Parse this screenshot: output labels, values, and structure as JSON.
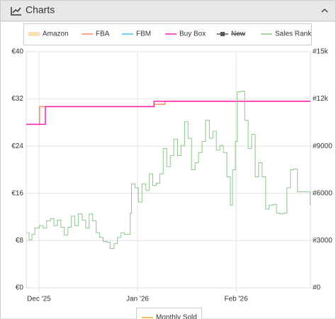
{
  "panel": {
    "title": "Charts"
  },
  "chart_data": {
    "type": "line",
    "xlim": [
      -4,
      85.4
    ],
    "xticks": [
      {
        "value": 0,
        "label": "Dec '25"
      },
      {
        "value": 31,
        "label": "Jan '26"
      },
      {
        "value": 62,
        "label": "Feb '26"
      }
    ],
    "ylim": [
      0,
      40
    ],
    "yticks": [
      {
        "value": 0,
        "label": "€0"
      },
      {
        "value": 8,
        "label": "€8"
      },
      {
        "value": 16,
        "label": "€16"
      },
      {
        "value": 24,
        "label": "€24"
      },
      {
        "value": 32,
        "label": "€32"
      },
      {
        "value": 40,
        "label": "€40"
      }
    ],
    "y2lim": [
      0,
      15000
    ],
    "y2ticks": [
      {
        "value": 0,
        "label": "#0"
      },
      {
        "value": 3000,
        "label": "#3000"
      },
      {
        "value": 6000,
        "label": "#6000"
      },
      {
        "value": 9000,
        "label": "#9000"
      },
      {
        "value": 12000,
        "label": "#12k"
      },
      {
        "value": 15000,
        "label": "#15k"
      }
    ],
    "grid": true,
    "step": true,
    "series": [
      {
        "name": "Amazon",
        "color": "#f7c97e",
        "x": [],
        "values": []
      },
      {
        "name": "FBA",
        "color": "#ff8a65",
        "x": [
          -4,
          0.2,
          36.2,
          39.6,
          85.4
        ],
        "values": [
          27.7,
          30.7,
          31.1,
          31.6,
          31.6
        ]
      },
      {
        "name": "FBM",
        "color": "#4fc3f7",
        "x": [],
        "values": []
      },
      {
        "name": "Buy Box",
        "color": "#ff1fb4",
        "x": [
          -4,
          2,
          36.2,
          85.4
        ],
        "values": [
          27.7,
          30.7,
          31.6,
          31.6
        ]
      },
      {
        "name": "New",
        "color": "#555555",
        "disabled": true,
        "x": [],
        "values": []
      },
      {
        "name": "Sales Rank",
        "color": "#8dc68d",
        "axis": "y2",
        "x": [
          -3.8,
          -3.1,
          -2.2,
          -1.3,
          0.2,
          1.3,
          2.4,
          3.6,
          4.7,
          5.8,
          6.9,
          8.0,
          9.1,
          10.2,
          11.3,
          12.4,
          13.6,
          14.7,
          15.8,
          16.9,
          18.0,
          19.1,
          20.2,
          21.3,
          22.4,
          23.6,
          24.7,
          25.8,
          26.9,
          28.0,
          28.7,
          29.1,
          30.2,
          31.3,
          32.4,
          33.6,
          34.7,
          35.8,
          36.9,
          38.0,
          39.1,
          40.2,
          41.3,
          42.4,
          43.6,
          44.7,
          45.8,
          46.9,
          48.0,
          49.1,
          50.2,
          51.3,
          52.4,
          53.6,
          54.7,
          55.8,
          56.9,
          58.0,
          59.1,
          60.2,
          60.9,
          61.8,
          62.4,
          63.6,
          64.7,
          65.8,
          66.9,
          68.0,
          69.1,
          70.2,
          71.3,
          72.4,
          73.6,
          74.7,
          75.8,
          76.9,
          78.0,
          79.1,
          80.2,
          81.3,
          82.4,
          83.6,
          84.7,
          85.3
        ],
        "values": [
          3500,
          3050,
          3400,
          3800,
          3950,
          3800,
          4250,
          4400,
          3950,
          4300,
          3850,
          3350,
          3850,
          4550,
          3950,
          4700,
          4300,
          3800,
          4700,
          4250,
          3500,
          3200,
          2950,
          2900,
          2500,
          2800,
          3200,
          3500,
          3400,
          3400,
          4750,
          6600,
          6350,
          5450,
          6600,
          6200,
          7250,
          6500,
          6650,
          7250,
          8850,
          7700,
          8400,
          9450,
          8400,
          9050,
          10550,
          9500,
          7500,
          7950,
          8600,
          9300,
          10650,
          9500,
          9950,
          8750,
          9050,
          8600,
          7050,
          5250,
          7500,
          9300,
          12450,
          12500,
          10650,
          8850,
          9750,
          7050,
          7950,
          7050,
          5000,
          5250,
          5300,
          4750,
          4700,
          4750,
          6350,
          7500,
          7550,
          6100,
          6100,
          6100,
          6100,
          5250
        ]
      }
    ],
    "secondary_legend": {
      "name": "Monthly Sold",
      "color": "#f5a623"
    }
  }
}
